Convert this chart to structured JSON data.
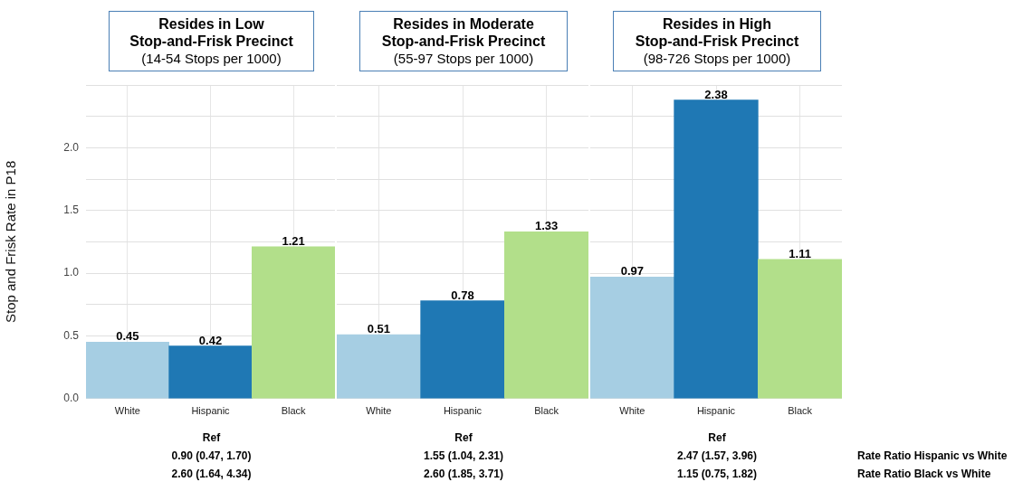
{
  "chart_data": [
    {
      "type": "bar",
      "title": "Resides in Low\nStop-and-Frisk Precinct",
      "subtitle": "(14-54 Stops per 1000)",
      "ylabel": "Stop and Frisk Rate in P18",
      "categories": [
        "White",
        "Hispanic",
        "Black"
      ],
      "values": [
        0.45,
        0.42,
        1.21
      ],
      "colors": [
        "#a6cee3",
        "#1f78b4",
        "#b2df8a"
      ],
      "ylim": [
        0,
        2.5
      ],
      "yticks": [
        {
          "value": 0,
          "label": "0.0"
        },
        0.5,
        {
          "value": 0.75,
          "label": null
        },
        {
          "value": 1,
          "label": "1.0"
        },
        {
          "value": 1.25,
          "label": null
        },
        1.5,
        {
          "value": 1.75,
          "label": null
        },
        {
          "value": 2,
          "label": "2.0"
        },
        {
          "value": 2.25,
          "label": null
        },
        {
          "value": 2.5,
          "label": null
        }
      ],
      "grid": true,
      "data_labels": true,
      "annotations": [
        "Ref",
        "0.90 (0.47, 1.70)",
        "2.60 (1.64, 4.34)"
      ]
    },
    {
      "type": "bar",
      "title": "Resides in Moderate\nStop-and-Frisk Precinct",
      "subtitle": "(55-97 Stops per 1000)",
      "categories": [
        "White",
        "Hispanic",
        "Black"
      ],
      "values": [
        0.51,
        0.78,
        1.33
      ],
      "colors": [
        "#a6cee3",
        "#1f78b4",
        "#b2df8a"
      ],
      "ylim": [
        0,
        2.5
      ],
      "yticks": [
        {
          "value": 0,
          "label": null
        },
        {
          "value": 0.5,
          "label": null
        },
        {
          "value": 0.75,
          "label": null
        },
        {
          "value": 1,
          "label": null
        },
        {
          "value": 1.25,
          "label": null
        },
        {
          "value": 1.5,
          "label": null
        },
        {
          "value": 1.75,
          "label": null
        },
        {
          "value": 2,
          "label": null
        },
        {
          "value": 2.25,
          "label": null
        },
        {
          "value": 2.5,
          "label": null
        }
      ],
      "tick_labels": "x",
      "grid": true,
      "data_labels": true,
      "annotations": [
        "Ref",
        "1.55 (1.04, 2.31)",
        "2.60 (1.85, 3.71)"
      ]
    },
    {
      "type": "bar",
      "title": "Resides in High\nStop-and-Frisk Precinct",
      "subtitle": "(98-726 Stops per 1000)",
      "categories": [
        "White",
        "Hispanic",
        "Black"
      ],
      "values": [
        0.97,
        2.38,
        1.11
      ],
      "colors": [
        "#a6cee3",
        "#1f78b4",
        "#b2df8a"
      ],
      "ylim": [
        0,
        2.5
      ],
      "yticks": [
        {
          "value": 0,
          "label": null
        },
        {
          "value": 0.5,
          "label": null
        },
        {
          "value": 1,
          "label": null
        },
        {
          "value": 1.25,
          "label": null
        },
        {
          "value": 1.5,
          "label": null
        },
        {
          "value": 1.75,
          "label": null
        },
        {
          "value": 2,
          "label": null
        },
        {
          "value": 2.25,
          "label": null
        },
        {
          "value": 2.5,
          "label": null
        }
      ],
      "tick_labels": "x",
      "grid": true,
      "data_labels": true,
      "annotations": [
        "Ref",
        "2.47 (1.57, 3.96)",
        "1.15 (0.75, 1.82)"
      ]
    },
    {
      "type": "other",
      "annotations": [
        "Rate Ratio Hispanic vs White",
        "Rate Ratio Black vs White"
      ]
    }
  ]
}
